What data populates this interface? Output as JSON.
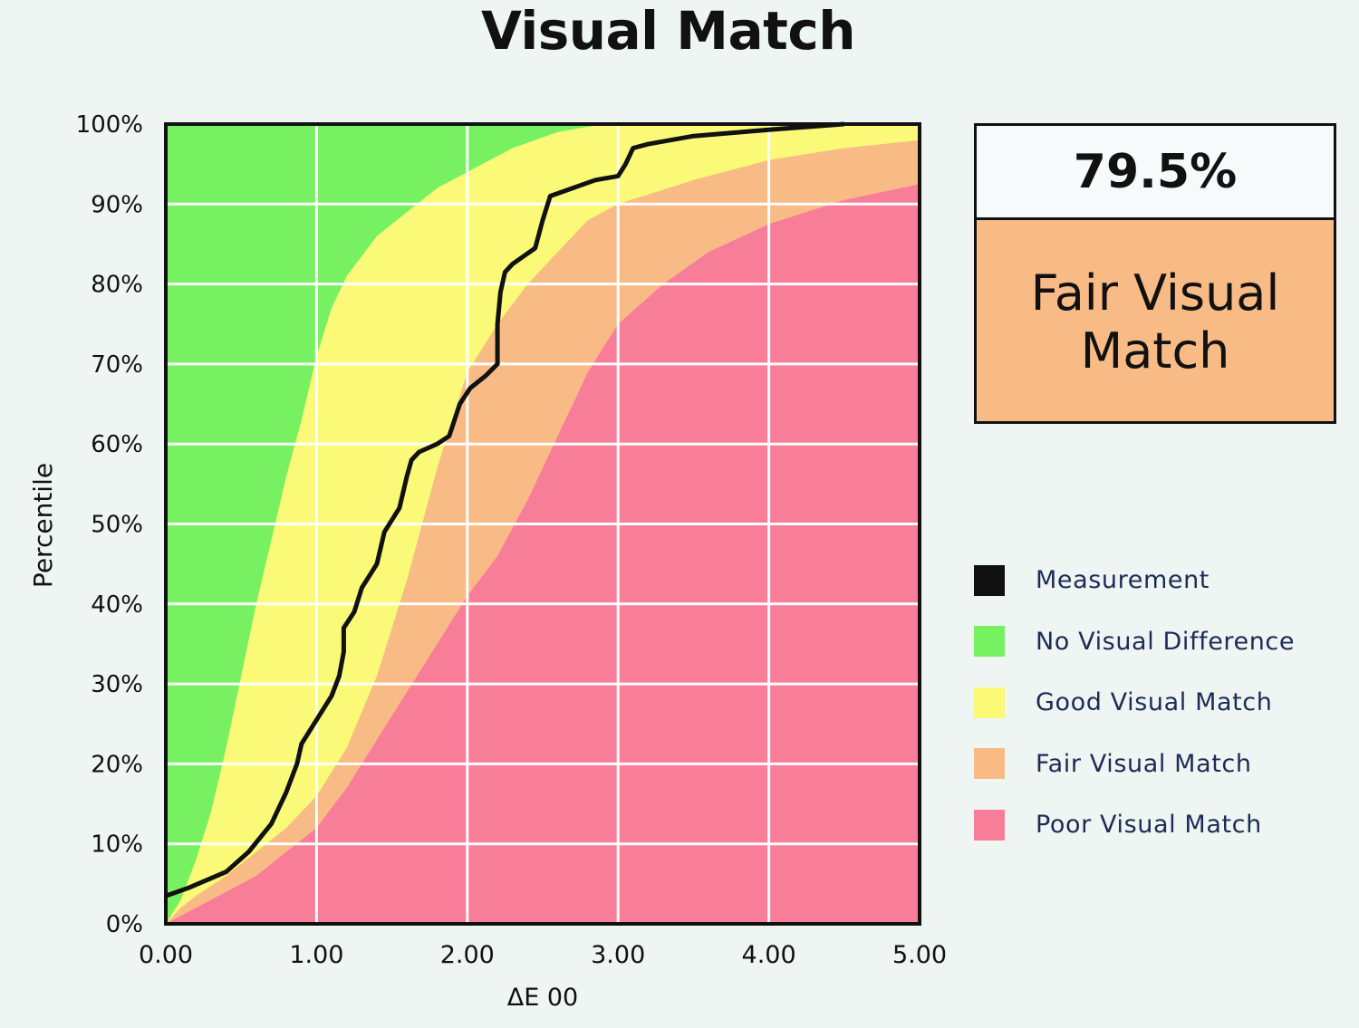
{
  "title": "Visual Match",
  "score": {
    "value": "79.5%",
    "label": "Fair Visual Match",
    "color": "#f8bb86"
  },
  "legend": [
    {
      "label": "Measurement",
      "color": "#111111"
    },
    {
      "label": "No Visual Difference",
      "color": "#77f062"
    },
    {
      "label": "Good Visual Match",
      "color": "#fafa78"
    },
    {
      "label": "Fair Visual Match",
      "color": "#f8bb86"
    },
    {
      "label": "Poor Visual Match",
      "color": "#f87d99"
    }
  ],
  "chart_data": {
    "type": "area",
    "xlabel": "ΔE 00",
    "ylabel": "Percentile",
    "xlim": [
      0,
      5
    ],
    "ylim": [
      0,
      100
    ],
    "grid": true,
    "x_ticks": [
      "0.00",
      "1.00",
      "2.00",
      "3.00",
      "4.00",
      "5.00"
    ],
    "y_ticks": [
      "0%",
      "10%",
      "20%",
      "30%",
      "40%",
      "50%",
      "60%",
      "70%",
      "80%",
      "90%",
      "100%"
    ],
    "bands": [
      {
        "name": "No Visual Difference",
        "color": "#77f062",
        "boundary": [
          [
            0,
            0
          ],
          [
            0.1,
            3
          ],
          [
            0.2,
            8
          ],
          [
            0.3,
            14
          ],
          [
            0.4,
            22
          ],
          [
            0.5,
            31
          ],
          [
            0.6,
            40
          ],
          [
            0.7,
            48
          ],
          [
            0.8,
            56
          ],
          [
            0.9,
            63
          ],
          [
            1.0,
            71
          ],
          [
            1.1,
            77
          ],
          [
            1.2,
            81
          ],
          [
            1.4,
            86
          ],
          [
            1.6,
            89
          ],
          [
            1.8,
            92
          ],
          [
            2.0,
            94
          ],
          [
            2.3,
            97
          ],
          [
            2.6,
            99
          ],
          [
            2.9,
            100
          ],
          [
            5.0,
            100
          ]
        ]
      },
      {
        "name": "Good Visual Match",
        "color": "#fafa78",
        "boundary": [
          [
            0,
            0
          ],
          [
            0.1,
            2
          ],
          [
            0.2,
            3.5
          ],
          [
            0.4,
            6
          ],
          [
            0.6,
            9
          ],
          [
            0.8,
            12
          ],
          [
            1.0,
            16
          ],
          [
            1.2,
            22
          ],
          [
            1.4,
            31
          ],
          [
            1.6,
            43
          ],
          [
            1.8,
            57
          ],
          [
            1.9,
            63
          ],
          [
            2.0,
            69
          ],
          [
            2.2,
            75
          ],
          [
            2.4,
            80
          ],
          [
            2.6,
            84
          ],
          [
            2.8,
            88
          ],
          [
            3.0,
            90
          ],
          [
            3.5,
            93
          ],
          [
            4.0,
            95.5
          ],
          [
            4.5,
            97
          ],
          [
            5.0,
            98
          ]
        ]
      },
      {
        "name": "Fair Visual Match",
        "color": "#f8bb86",
        "boundary": [
          [
            0,
            0
          ],
          [
            0.2,
            2
          ],
          [
            0.4,
            4
          ],
          [
            0.6,
            6
          ],
          [
            0.8,
            9
          ],
          [
            1.0,
            12
          ],
          [
            1.2,
            17
          ],
          [
            1.4,
            23
          ],
          [
            1.6,
            29
          ],
          [
            1.8,
            35
          ],
          [
            2.0,
            41
          ],
          [
            2.2,
            46
          ],
          [
            2.4,
            53
          ],
          [
            2.6,
            61
          ],
          [
            2.8,
            69
          ],
          [
            3.0,
            75
          ],
          [
            3.3,
            80
          ],
          [
            3.6,
            84
          ],
          [
            4.0,
            87.5
          ],
          [
            4.5,
            90.5
          ],
          [
            5.0,
            92.5
          ]
        ]
      },
      {
        "name": "Poor Visual Match",
        "color": "#f87d99",
        "boundary": "remainder"
      }
    ],
    "series": [
      {
        "name": "Measurement",
        "color": "#111111",
        "x": [
          0,
          0.15,
          0.4,
          0.55,
          0.7,
          0.8,
          0.87,
          0.9,
          1.0,
          1.1,
          1.15,
          1.18,
          1.18,
          1.25,
          1.3,
          1.4,
          1.45,
          1.5,
          1.55,
          1.6,
          1.63,
          1.68,
          1.8,
          1.88,
          1.95,
          2.02,
          2.12,
          2.2,
          2.2,
          2.22,
          2.25,
          2.3,
          2.45,
          2.5,
          2.55,
          2.7,
          2.85,
          3.0,
          3.05,
          3.1,
          3.2,
          3.5,
          4.0,
          4.5
        ],
        "y": [
          3.5,
          4.5,
          6.5,
          9,
          12.5,
          16.5,
          20,
          22.5,
          25.5,
          28.5,
          31,
          34,
          37,
          39,
          42,
          45,
          49,
          50.5,
          52,
          56,
          58,
          59,
          60,
          61,
          65,
          67,
          68.5,
          70,
          75,
          79,
          81.5,
          82.5,
          84.5,
          88,
          91,
          92,
          93,
          93.5,
          95,
          97,
          97.5,
          98.5,
          99.3,
          100
        ]
      }
    ]
  }
}
